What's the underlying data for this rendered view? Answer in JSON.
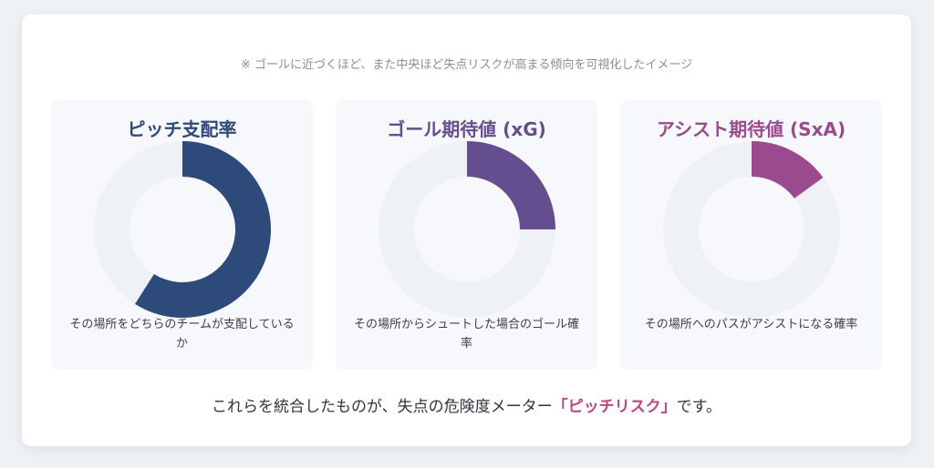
{
  "note": "※ ゴールに近づくほど、また中央ほど失点リスクが高まる傾向を可視化したイメージ",
  "colors": {
    "track": "#eef1f6",
    "highlight": "#c0457f"
  },
  "chart_data": [
    {
      "type": "pie",
      "title": "ピッチ支配率",
      "caption": "その場所をどちらのチームが支配しているか",
      "color": "#2e4a7a",
      "values": [
        0.59
      ]
    },
    {
      "type": "pie",
      "title": "ゴール期待値 (xG)",
      "caption": "その場所からシュートした場合のゴール確率",
      "color": "#654e8f",
      "values": [
        0.25
      ]
    },
    {
      "type": "pie",
      "title": "アシスト期待値 (SxA)",
      "caption": "その場所へのパスがアシストになる確率",
      "color": "#9c4a8e",
      "values": [
        0.15
      ]
    }
  ],
  "summary": {
    "prefix": "これらを統合したものが、失点の危険度メーター",
    "highlight": "「ピッチリスク」",
    "suffix": "です。"
  }
}
